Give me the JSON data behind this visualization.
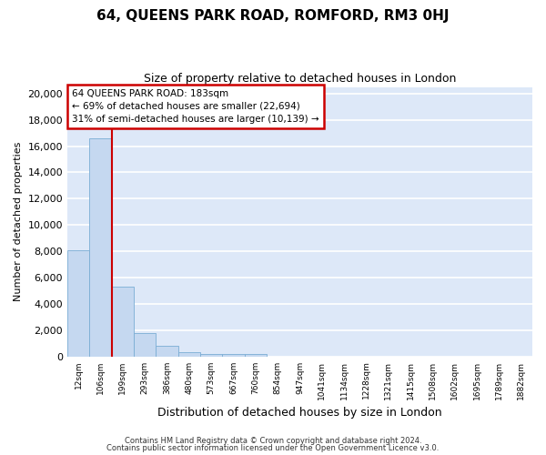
{
  "title": "64, QUEENS PARK ROAD, ROMFORD, RM3 0HJ",
  "subtitle": "Size of property relative to detached houses in London",
  "xlabel": "Distribution of detached houses by size in London",
  "ylabel": "Number of detached properties",
  "bar_labels": [
    "12sqm",
    "106sqm",
    "199sqm",
    "293sqm",
    "386sqm",
    "480sqm",
    "573sqm",
    "667sqm",
    "760sqm",
    "854sqm",
    "947sqm",
    "1041sqm",
    "1134sqm",
    "1228sqm",
    "1321sqm",
    "1415sqm",
    "1508sqm",
    "1602sqm",
    "1695sqm",
    "1789sqm",
    "1882sqm"
  ],
  "bar_values": [
    8100,
    16600,
    5300,
    1750,
    800,
    300,
    220,
    175,
    200,
    0,
    0,
    0,
    0,
    0,
    0,
    0,
    0,
    0,
    0,
    0,
    0
  ],
  "bar_color": "#c5d8f0",
  "bar_edge_color": "#7aadd4",
  "background_color": "#dde8f8",
  "grid_color": "#ffffff",
  "red_line_x": 2,
  "annotation_title": "64 QUEENS PARK ROAD: 183sqm",
  "annotation_line1": "← 69% of detached houses are smaller (22,694)",
  "annotation_line2": "31% of semi-detached houses are larger (10,139) →",
  "annotation_box_facecolor": "#ffffff",
  "annotation_box_edgecolor": "#cc0000",
  "ylim": [
    0,
    20500
  ],
  "yticks": [
    0,
    2000,
    4000,
    6000,
    8000,
    10000,
    12000,
    14000,
    16000,
    18000,
    20000
  ],
  "footnote1": "Contains HM Land Registry data © Crown copyright and database right 2024.",
  "footnote2": "Contains public sector information licensed under the Open Government Licence v3.0."
}
